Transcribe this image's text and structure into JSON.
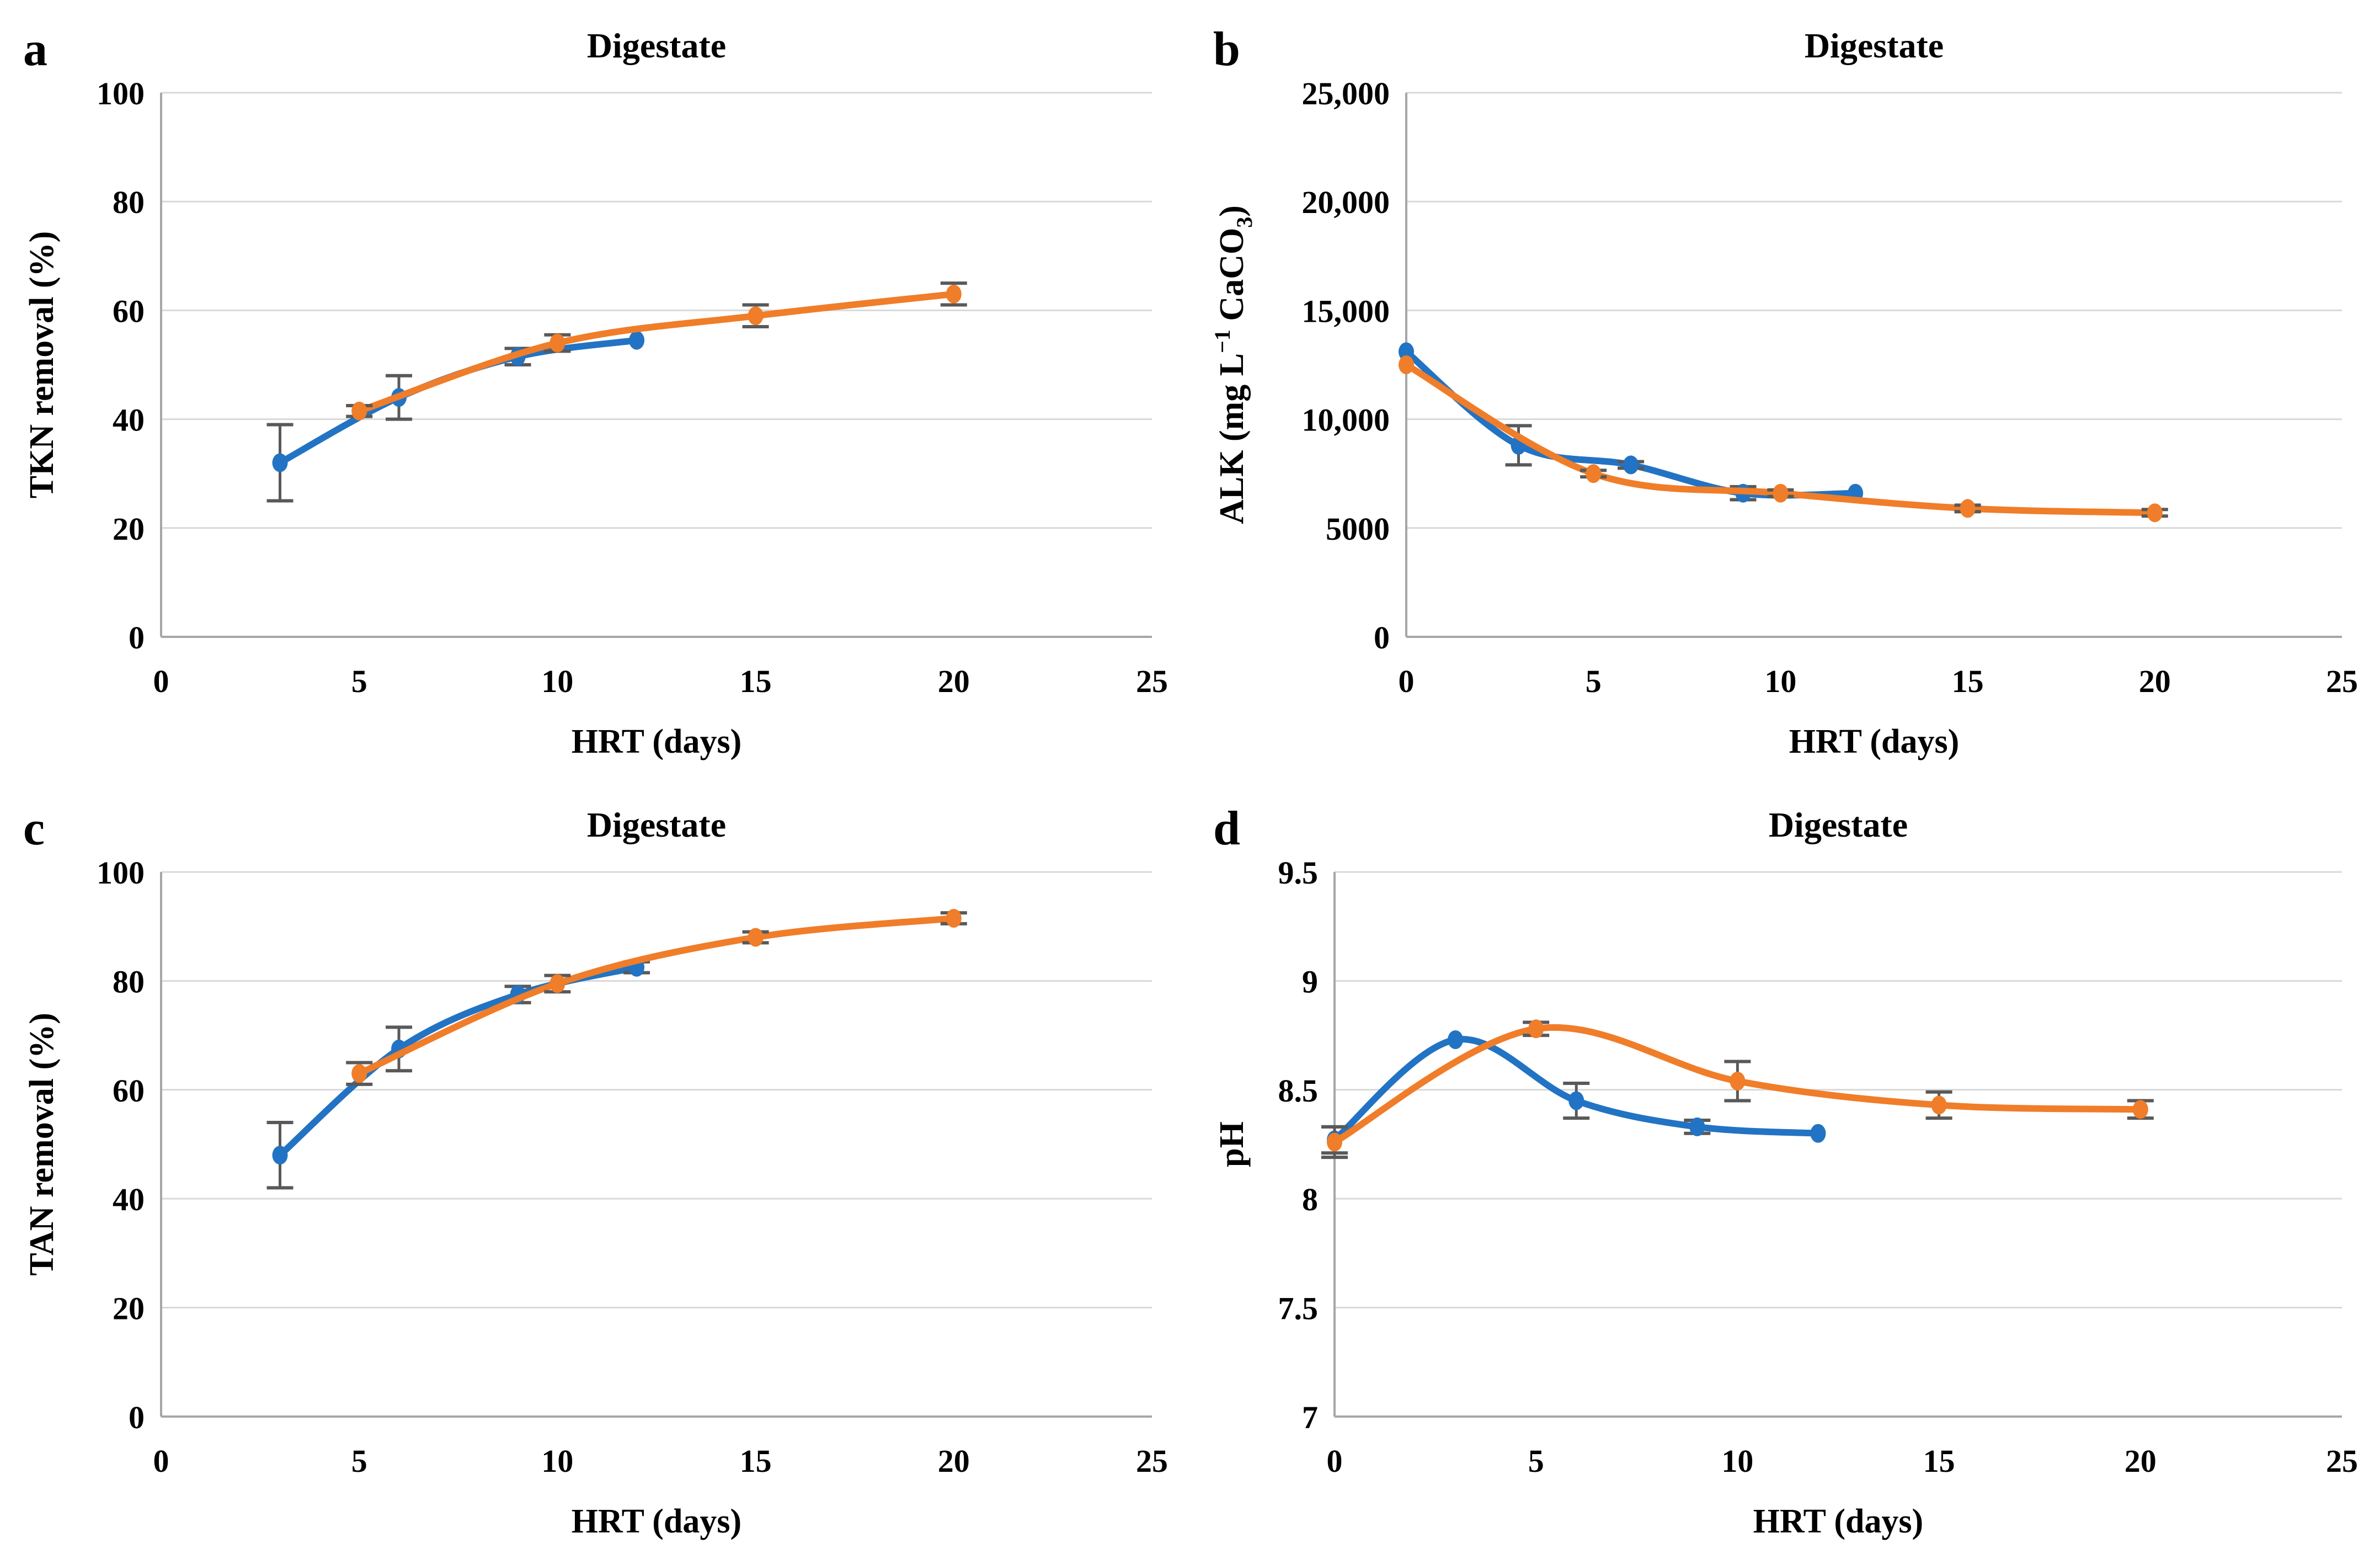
{
  "figure": {
    "background": "#ffffff",
    "font_weight": "bold",
    "text_color": "#000000"
  },
  "colors": {
    "series_blue": "#2273C3",
    "series_orange": "#F07D29",
    "error_bar": "#595959",
    "gridline": "#D9D9D9",
    "axis_line": "#A6A6A6"
  },
  "chart_data": [
    {
      "panel": "a",
      "type": "line",
      "title": "Digestate",
      "xlabel": "HRT (days)",
      "ylabel": "TKN removal (%)",
      "ylabel_parts": [
        {
          "text": "TKN removal (%)"
        }
      ],
      "xlim": [
        0,
        25
      ],
      "ylim": [
        0,
        100
      ],
      "xticks": [
        0,
        5,
        10,
        15,
        20,
        25
      ],
      "xtick_labels": [
        "0",
        "5",
        "10",
        "15",
        "20",
        "25"
      ],
      "yticks": [
        0,
        20,
        40,
        60,
        80,
        100
      ],
      "ytick_labels": [
        "0",
        "20",
        "40",
        "60",
        "80",
        "100"
      ],
      "grid": "horizontal",
      "legend": "none",
      "smooth": true,
      "series": [
        {
          "name": "blue-series",
          "color_key": "series_blue",
          "x": [
            3,
            6,
            9,
            12
          ],
          "y": [
            32,
            44,
            51.5,
            54.5
          ],
          "yerr": [
            7,
            4,
            1.5,
            0
          ]
        },
        {
          "name": "orange-series",
          "color_key": "series_orange",
          "x": [
            5,
            10,
            15,
            20
          ],
          "y": [
            41.5,
            54,
            59,
            63
          ],
          "yerr": [
            1,
            1.5,
            2,
            2
          ]
        }
      ]
    },
    {
      "panel": "b",
      "type": "line",
      "title": "Digestate",
      "xlabel": "HRT (days)",
      "ylabel": "ALK (mg L⁻¹ CaCO₃)",
      "ylabel_parts": [
        {
          "text": "ALK (mg L"
        },
        {
          "text": "−1",
          "script": "sup"
        },
        {
          "text": " CaCO"
        },
        {
          "text": "3",
          "script": "sub"
        },
        {
          "text": ")"
        }
      ],
      "xlim": [
        0,
        25
      ],
      "ylim": [
        0,
        25000
      ],
      "xticks": [
        0,
        5,
        10,
        15,
        20,
        25
      ],
      "xtick_labels": [
        "0",
        "5",
        "10",
        "15",
        "20",
        "25"
      ],
      "yticks": [
        0,
        5000,
        10000,
        15000,
        20000,
        25000
      ],
      "ytick_labels": [
        "0",
        "5000",
        "10,000",
        "15,000",
        "20,000",
        "25,000"
      ],
      "grid": "horizontal",
      "legend": "none",
      "smooth": true,
      "series": [
        {
          "name": "blue-series",
          "color_key": "series_blue",
          "x": [
            0,
            3,
            6,
            9,
            12
          ],
          "y": [
            13100,
            8800,
            7900,
            6600,
            6600
          ],
          "yerr": [
            0,
            900,
            150,
            300,
            0
          ]
        },
        {
          "name": "orange-series",
          "color_key": "series_orange",
          "x": [
            0,
            5,
            10,
            15,
            20
          ],
          "y": [
            12500,
            7500,
            6600,
            5900,
            5700
          ],
          "yerr": [
            0,
            150,
            150,
            150,
            150
          ]
        }
      ]
    },
    {
      "panel": "c",
      "type": "line",
      "title": "Digestate",
      "xlabel": "HRT (days)",
      "ylabel": "TAN removal (%)",
      "ylabel_parts": [
        {
          "text": "TAN removal (%)"
        }
      ],
      "xlim": [
        0,
        25
      ],
      "ylim": [
        0,
        100
      ],
      "xticks": [
        0,
        5,
        10,
        15,
        20,
        25
      ],
      "xtick_labels": [
        "0",
        "5",
        "10",
        "15",
        "20",
        "25"
      ],
      "yticks": [
        0,
        20,
        40,
        60,
        80,
        100
      ],
      "ytick_labels": [
        "0",
        "20",
        "40",
        "60",
        "80",
        "100"
      ],
      "grid": "horizontal",
      "legend": "none",
      "smooth": true,
      "series": [
        {
          "name": "blue-series",
          "color_key": "series_blue",
          "x": [
            3,
            6,
            9,
            12
          ],
          "y": [
            48,
            67.5,
            77.5,
            82.5
          ],
          "yerr": [
            6,
            4,
            1.5,
            1
          ]
        },
        {
          "name": "orange-series",
          "color_key": "series_orange",
          "x": [
            5,
            10,
            15,
            20
          ],
          "y": [
            63,
            79.5,
            88,
            91.5
          ],
          "yerr": [
            2,
            1.5,
            1,
            1
          ]
        }
      ]
    },
    {
      "panel": "d",
      "type": "line",
      "title": "Digestate",
      "xlabel": "HRT (days)",
      "ylabel": "pH",
      "ylabel_parts": [
        {
          "text": "pH"
        }
      ],
      "xlim": [
        0,
        25
      ],
      "ylim": [
        7,
        9.5
      ],
      "xticks": [
        0,
        5,
        10,
        15,
        20,
        25
      ],
      "xtick_labels": [
        "0",
        "5",
        "10",
        "15",
        "20",
        "25"
      ],
      "yticks": [
        7,
        7.5,
        8,
        8.5,
        9,
        9.5
      ],
      "ytick_labels": [
        "7",
        "7.5",
        "8",
        "8.5",
        "9",
        "9.5"
      ],
      "grid": "horizontal",
      "legend": "none",
      "smooth": true,
      "series": [
        {
          "name": "blue-series",
          "color_key": "series_blue",
          "x": [
            0,
            3,
            6,
            9,
            12
          ],
          "y": [
            8.27,
            8.73,
            8.45,
            8.33,
            8.3
          ],
          "yerr": [
            0.06,
            0,
            0.08,
            0.03,
            0
          ]
        },
        {
          "name": "orange-series",
          "color_key": "series_orange",
          "x": [
            0,
            5,
            10,
            15,
            20
          ],
          "y": [
            8.26,
            8.78,
            8.54,
            8.43,
            8.41
          ],
          "yerr": [
            0.07,
            0.03,
            0.09,
            0.06,
            0.04
          ]
        }
      ]
    }
  ]
}
